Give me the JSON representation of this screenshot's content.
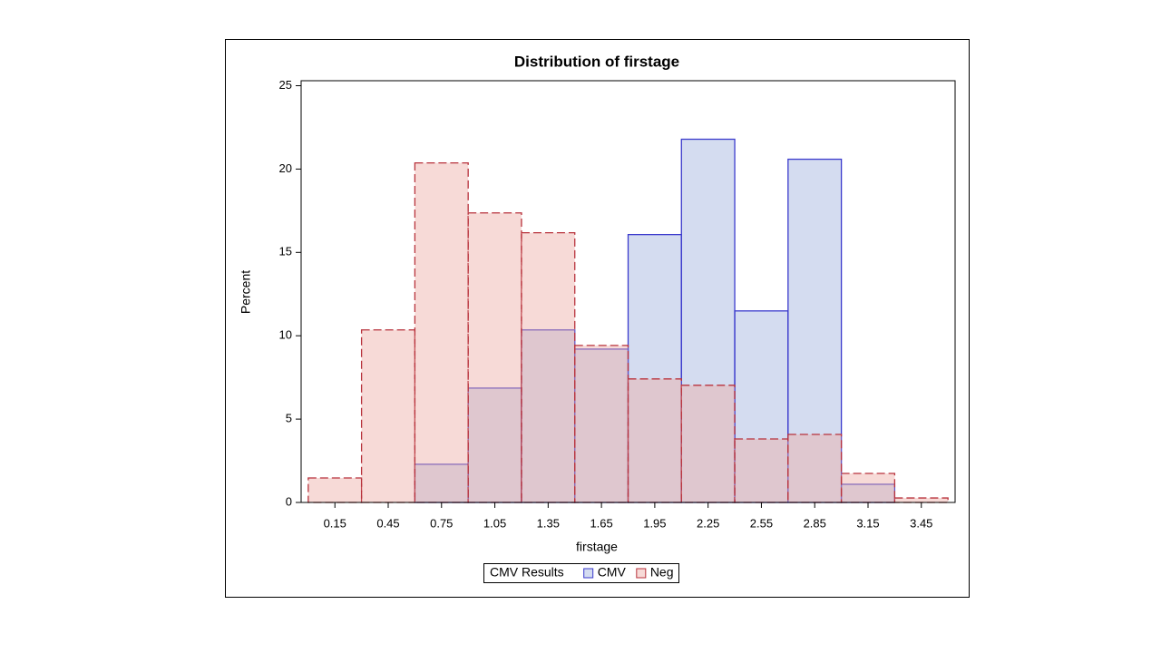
{
  "chart_data": {
    "type": "histogram",
    "title": "Distribution of firstage",
    "x_label": "firstage",
    "y_label": "Percent",
    "bins": [
      0,
      0.3,
      0.6,
      0.9,
      1.2,
      1.5,
      1.8,
      2.1,
      2.4,
      2.7,
      3,
      3.3,
      3.6
    ],
    "series": [
      {
        "name": "CMV",
        "color": "#3a3acc",
        "fill": "#9fb1dd",
        "dash": false,
        "values": [
          0,
          0,
          2.29,
          6.86,
          10.35,
          9.2,
          16.07,
          21.79,
          11.49,
          20.59,
          1.09,
          0
        ]
      },
      {
        "name": "Neg",
        "color": "#b8323c",
        "fill": "#eeaea6",
        "dash": true,
        "values": [
          1.47,
          10.35,
          20.37,
          17.37,
          16.18,
          9.42,
          7.41,
          7.03,
          3.81,
          4.08,
          1.74,
          0.27
        ]
      }
    ],
    "legend_title": "CMV Results",
    "legend": "bottom",
    "xlim": [
      -0.04,
      3.64
    ],
    "ylim": [
      0,
      25.3
    ],
    "xticks": [
      0.15,
      0.45,
      0.75,
      1.05,
      1.35,
      1.65,
      1.95,
      2.25,
      2.55,
      2.85,
      3.15,
      3.45
    ],
    "yticks": [
      0,
      5,
      10,
      15,
      20,
      25
    ]
  }
}
